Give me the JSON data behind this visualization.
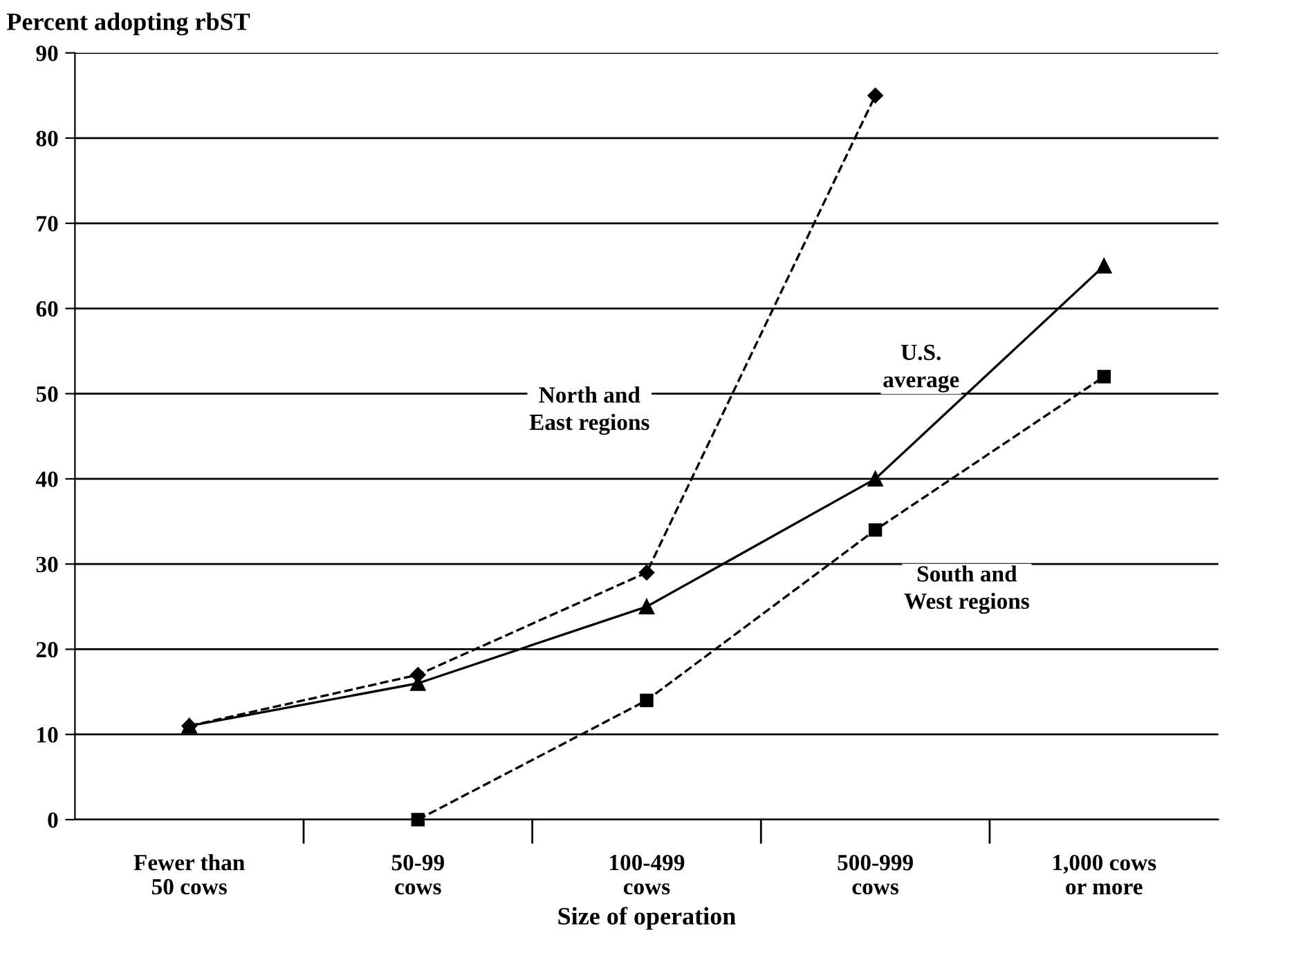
{
  "chart_data": {
    "type": "line",
    "ylabel": "Percent adopting rbST",
    "xlabel": "Size of operation",
    "categories": [
      "Fewer than\n50 cows",
      "50-99\ncows",
      "100-499\ncows",
      "500-999\ncows",
      "1,000 cows\nor more"
    ],
    "ylim": [
      0,
      90
    ],
    "yticks": [
      0,
      10,
      20,
      30,
      40,
      50,
      60,
      70,
      80,
      90
    ],
    "grid": "y",
    "legend": false,
    "series": [
      {
        "name": "North and\nEast regions",
        "color": "#000000",
        "marker": "diamond",
        "line_style": "dashed",
        "values": [
          11,
          17,
          29,
          85,
          null
        ]
      },
      {
        "name": "U.S.\naverage",
        "color": "#000000",
        "marker": "triangle",
        "line_style": "solid",
        "values": [
          11,
          16,
          25,
          40,
          65
        ]
      },
      {
        "name": "South and\nWest regions",
        "color": "#000000",
        "marker": "square",
        "line_style": "dashed",
        "values": [
          null,
          0,
          14,
          34,
          52
        ]
      }
    ]
  }
}
